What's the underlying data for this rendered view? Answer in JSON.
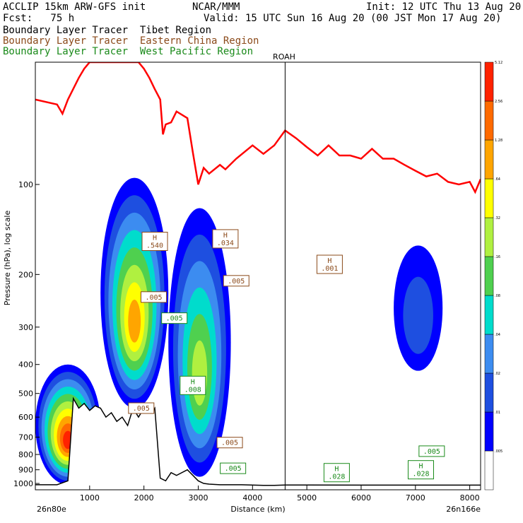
{
  "header": {
    "model": "ACCLIP 15km ARW-GFS init",
    "fcst": "Fcst:   75 h",
    "center": "NCAR/MMM",
    "init": "Init: 12 UTC Thu 13 Aug 20",
    "valid": "Valid: 15 UTC Sun 16 Aug 20 (00 JST Mon 17 Aug 20)",
    "legend": [
      {
        "label": "Boundary Layer Tracer  Tibet Region",
        "color": "#000000"
      },
      {
        "label": "Boundary Layer Tracer  Eastern China Region",
        "color": "#8b4a1a"
      },
      {
        "label": "Boundary Layer Tracer  West Pacific Region",
        "color": "#1a8a1a"
      }
    ]
  },
  "chart_data": {
    "type": "heatmap",
    "xlabel": "Distance (km)",
    "ylabel": "Pressure (hPa), log scale",
    "x_ticks": [
      1000,
      2000,
      3000,
      4000,
      5000,
      6000,
      7000,
      8000
    ],
    "y_ticks": [
      100,
      200,
      300,
      400,
      500,
      600,
      700,
      800,
      900,
      1000
    ],
    "xlim": [
      0,
      8200
    ],
    "ylim": [
      1050,
      39
    ],
    "y_scale": "log",
    "left_end_label": "26n80e",
    "right_end_label": "26n166e",
    "marker": {
      "label": "ROAH",
      "x": 4600
    },
    "colorbar": {
      "levels": [
        ".005",
        ".01",
        ".02",
        ".04",
        ".08",
        ".16",
        ".32",
        ".64",
        "1.28",
        "2.56",
        "5.12"
      ],
      "colors": [
        "#ffffff",
        "#0000ff",
        "#1e4fe0",
        "#3c8cf0",
        "#00dccc",
        "#4fd04f",
        "#b0f040",
        "#ffff00",
        "#ffa500",
        "#ff6a00",
        "#ff2200"
      ]
    },
    "tropopause_series": {
      "color": "#ff0000",
      "x": [
        0,
        400,
        500,
        600,
        800,
        900,
        1000,
        1100,
        1200,
        1500,
        1700,
        1800,
        1900,
        2000,
        2100,
        2200,
        2300,
        2350,
        2400,
        2500,
        2600,
        2800,
        2900,
        3000,
        3100,
        3200,
        3400,
        3500,
        3700,
        4000,
        4200,
        4400,
        4600,
        4800,
        5000,
        5200,
        5400,
        5600,
        5800,
        6000,
        6200,
        6400,
        6600,
        6800,
        7000,
        7200,
        7400,
        7600,
        7800,
        8000,
        8100,
        8200
      ],
      "y": [
        52,
        54,
        58,
        52,
        44,
        41,
        39,
        39,
        39,
        39,
        39,
        39,
        39,
        41,
        44,
        48,
        52,
        68,
        63,
        62,
        57,
        60,
        78,
        100,
        88,
        92,
        86,
        89,
        82,
        74,
        79,
        74,
        66,
        70,
        75,
        80,
        74,
        80,
        80,
        82,
        76,
        82,
        82,
        86,
        90,
        94,
        92,
        98,
        100,
        98,
        106,
        96
      ]
    },
    "terrain_series": {
      "color": "#000000",
      "x": [
        0,
        400,
        600,
        700,
        800,
        900,
        1000,
        1100,
        1200,
        1300,
        1400,
        1500,
        1600,
        1700,
        1800,
        1900,
        2000,
        2100,
        2150,
        2200,
        2300,
        2400,
        2500,
        2600,
        2800,
        3000,
        3100,
        3200,
        3400,
        3800,
        4200,
        4400,
        4600,
        5000,
        6000,
        7000,
        8200
      ],
      "y": [
        1010,
        1010,
        980,
        520,
        560,
        540,
        570,
        550,
        560,
        600,
        580,
        620,
        600,
        640,
        560,
        600,
        560,
        560,
        580,
        560,
        960,
        980,
        920,
        940,
        900,
        980,
        1000,
        1005,
        1010,
        1010,
        1015,
        1015,
        1012,
        1012,
        1013,
        1013,
        1013
      ]
    },
    "tibet_tracer_field": [
      {
        "x0": 0,
        "x1": 1200,
        "p_top": 400,
        "p_bot": 1010,
        "max_level": "5.12"
      },
      {
        "x0": 1200,
        "x1": 2450,
        "p_top": 95,
        "p_bot": 560,
        "max_level": "1.28"
      },
      {
        "x0": 2450,
        "x1": 3600,
        "p_top": 120,
        "p_bot": 950,
        "max_level": ".32"
      },
      {
        "x0": 6600,
        "x1": 7500,
        "p_top": 160,
        "p_bot": 420,
        "max_level": ".02"
      }
    ],
    "annotations": [
      {
        "text": "H\n.540",
        "x": 2200,
        "p": 155,
        "color": "#8b4a1a"
      },
      {
        "text": "H\n.034",
        "x": 3500,
        "p": 152,
        "color": "#8b4a1a"
      },
      {
        "text": ".005",
        "x": 2180,
        "p": 238,
        "color": "#8b4a1a"
      },
      {
        "text": ".005",
        "x": 3700,
        "p": 210,
        "color": "#8b4a1a"
      },
      {
        "text": ".005",
        "x": 2560,
        "p": 280,
        "color": "#1a8a1a"
      },
      {
        "text": ".005",
        "x": 1950,
        "p": 560,
        "color": "#8b4a1a"
      },
      {
        "text": "H\n.008",
        "x": 2900,
        "p": 470,
        "color": "#1a8a1a"
      },
      {
        "text": "H\n.001",
        "x": 5420,
        "p": 185,
        "color": "#8b4a1a"
      },
      {
        "text": ".005",
        "x": 3580,
        "p": 730,
        "color": "#8b4a1a"
      },
      {
        "text": ".005",
        "x": 3640,
        "p": 890,
        "color": "#1a8a1a"
      },
      {
        "text": ".005",
        "x": 7300,
        "p": 780,
        "color": "#1a8a1a"
      },
      {
        "text": "H\n.028",
        "x": 7100,
        "p": 900,
        "color": "#1a8a1a"
      },
      {
        "text": "H\n.028",
        "x": 5550,
        "p": 920,
        "color": "#1a8a1a"
      }
    ]
  }
}
